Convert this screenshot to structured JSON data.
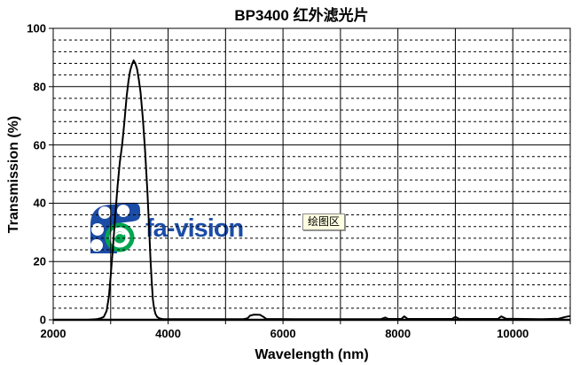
{
  "chart": {
    "title": "BP3400 红外滤光片",
    "xlabel": "Wavelength (nm)",
    "ylabel": "Transmission (%)",
    "tooltip": "绘图区"
  },
  "watermark": {
    "text": "fa-vision",
    "blue": "#1b4ca6",
    "green": "#00a651"
  },
  "chart_data": {
    "type": "line",
    "title": "BP3400 红外滤光片",
    "xlabel": "Wavelength (nm)",
    "ylabel": "Transmission (%)",
    "xlim": [
      2000,
      11000
    ],
    "ylim": [
      0,
      100
    ],
    "x_tick_step": 1000,
    "x_tick_labels": [
      "2000",
      "4000",
      "6000",
      "8000",
      "10000"
    ],
    "x_tick_label_values": [
      2000,
      4000,
      6000,
      8000,
      10000
    ],
    "y_tick_labels": [
      "100",
      "80",
      "60",
      "40",
      "20",
      "0"
    ],
    "y_tick_label_values": [
      100,
      80,
      60,
      40,
      20,
      0
    ],
    "y_major_step": 20,
    "y_minor_step": 4,
    "grid": {
      "h_major": "solid",
      "h_minor": "dashed",
      "v_major": "solid"
    },
    "legend": "none",
    "line_color": "#000000",
    "line_width": 2,
    "series": [
      {
        "name": "BP3400 transmission",
        "points": [
          [
            2000,
            0
          ],
          [
            2600,
            0
          ],
          [
            2750,
            0.2
          ],
          [
            2820,
            0.5
          ],
          [
            2880,
            1
          ],
          [
            2930,
            3
          ],
          [
            2970,
            8
          ],
          [
            3000,
            15
          ],
          [
            3040,
            25
          ],
          [
            3080,
            36
          ],
          [
            3120,
            46
          ],
          [
            3160,
            54
          ],
          [
            3200,
            60
          ],
          [
            3240,
            68
          ],
          [
            3280,
            77
          ],
          [
            3310,
            82
          ],
          [
            3340,
            85.5
          ],
          [
            3370,
            87.5
          ],
          [
            3400,
            89
          ],
          [
            3430,
            88
          ],
          [
            3460,
            86
          ],
          [
            3490,
            82.5
          ],
          [
            3520,
            78
          ],
          [
            3560,
            69
          ],
          [
            3600,
            58
          ],
          [
            3640,
            44
          ],
          [
            3670,
            31
          ],
          [
            3695,
            20
          ],
          [
            3715,
            13
          ],
          [
            3735,
            7
          ],
          [
            3755,
            4
          ],
          [
            3780,
            2
          ],
          [
            3810,
            1
          ],
          [
            3850,
            0.5
          ],
          [
            3920,
            0.2
          ],
          [
            4500,
            0.2
          ],
          [
            5300,
            0.2
          ],
          [
            5380,
            0.5
          ],
          [
            5430,
            1.5
          ],
          [
            5500,
            1.8
          ],
          [
            5600,
            1.7
          ],
          [
            5660,
            1
          ],
          [
            5710,
            0.3
          ],
          [
            6200,
            0.2
          ],
          [
            7700,
            0.2
          ],
          [
            7780,
            0.8
          ],
          [
            7830,
            0.3
          ],
          [
            8060,
            0.3
          ],
          [
            8110,
            1.2
          ],
          [
            8170,
            0.3
          ],
          [
            8940,
            0.3
          ],
          [
            9000,
            1
          ],
          [
            9070,
            0.3
          ],
          [
            9740,
            0.3
          ],
          [
            9800,
            1.2
          ],
          [
            9880,
            0.4
          ],
          [
            10500,
            0.2
          ],
          [
            10800,
            0.4
          ],
          [
            10920,
            1
          ],
          [
            11000,
            1.3
          ]
        ]
      }
    ]
  }
}
